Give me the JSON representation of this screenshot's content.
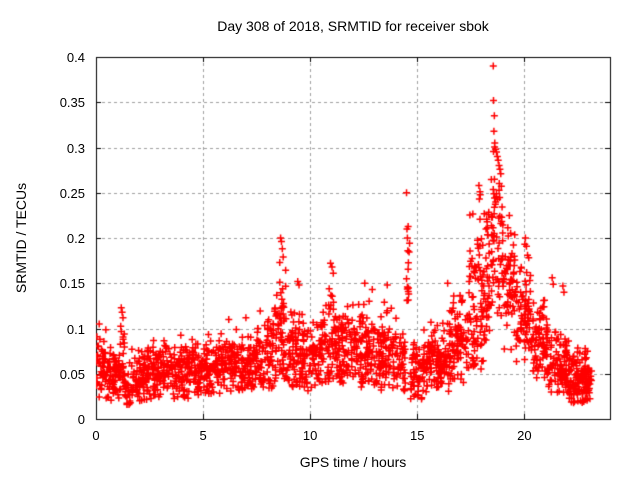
{
  "chart_data": {
    "type": "scatter",
    "title": "Day 308 of 2018, SRMTID for receiver sbok",
    "xlabel": "GPS time / hours",
    "ylabel": "SRMTID / TECUs",
    "xlim": [
      0,
      24
    ],
    "ylim": [
      0,
      0.4
    ],
    "xticks": [
      0,
      5,
      10,
      15,
      20
    ],
    "xtick_labels": [
      "0",
      "5",
      "10",
      "15",
      "20"
    ],
    "yticks": [
      0,
      0.05,
      0.1,
      0.15,
      0.2,
      0.25,
      0.3,
      0.35,
      0.4
    ],
    "ytick_labels": [
      "0",
      "0.05",
      "0.1",
      "0.15",
      "0.2",
      "0.25",
      "0.3",
      "0.35",
      "0.4"
    ],
    "grid": {
      "show": true,
      "style": "dashed",
      "color": "#a0a0a0"
    },
    "legend": "none",
    "marker": {
      "shape": "plus",
      "color": "#ff0000",
      "size": 7,
      "stroke": 1.5
    },
    "series_name": "SRMTID",
    "density_segments": [
      [
        0.0,
        0.6,
        60,
        0.052,
        0.018,
        0.022,
        0.105
      ],
      [
        0.6,
        1.1,
        50,
        0.048,
        0.016,
        0.02,
        0.1
      ],
      [
        1.1,
        1.35,
        25,
        0.068,
        0.028,
        0.025,
        0.125
      ],
      [
        1.35,
        1.65,
        25,
        0.04,
        0.014,
        0.015,
        0.08
      ],
      [
        1.65,
        2.6,
        95,
        0.048,
        0.014,
        0.02,
        0.085
      ],
      [
        2.6,
        3.6,
        100,
        0.052,
        0.015,
        0.024,
        0.092
      ],
      [
        3.6,
        4.2,
        60,
        0.05,
        0.016,
        0.022,
        0.096
      ],
      [
        4.2,
        5.0,
        80,
        0.052,
        0.015,
        0.024,
        0.09
      ],
      [
        5.0,
        5.8,
        80,
        0.055,
        0.016,
        0.027,
        0.1
      ],
      [
        5.8,
        6.5,
        70,
        0.06,
        0.018,
        0.03,
        0.112
      ],
      [
        6.5,
        7.5,
        100,
        0.06,
        0.018,
        0.03,
        0.113
      ],
      [
        7.5,
        8.3,
        80,
        0.068,
        0.022,
        0.034,
        0.135
      ],
      [
        8.3,
        8.9,
        65,
        0.1,
        0.038,
        0.04,
        0.2
      ],
      [
        8.9,
        9.6,
        70,
        0.07,
        0.028,
        0.034,
        0.155
      ],
      [
        9.6,
        10.5,
        90,
        0.065,
        0.02,
        0.03,
        0.125
      ],
      [
        10.5,
        11.3,
        80,
        0.085,
        0.028,
        0.04,
        0.175
      ],
      [
        11.3,
        12.1,
        80,
        0.075,
        0.022,
        0.038,
        0.14
      ],
      [
        12.1,
        13.1,
        100,
        0.075,
        0.024,
        0.035,
        0.152
      ],
      [
        13.1,
        14.1,
        100,
        0.072,
        0.022,
        0.03,
        0.145
      ],
      [
        14.1,
        14.45,
        35,
        0.06,
        0.02,
        0.028,
        0.12
      ],
      [
        14.45,
        14.65,
        12,
        0.17,
        0.035,
        0.13,
        0.252
      ],
      [
        14.65,
        15.6,
        85,
        0.053,
        0.018,
        0.02,
        0.1
      ],
      [
        15.6,
        16.5,
        90,
        0.065,
        0.02,
        0.03,
        0.15
      ],
      [
        16.5,
        17.4,
        95,
        0.082,
        0.026,
        0.04,
        0.162
      ],
      [
        17.4,
        18.1,
        85,
        0.13,
        0.045,
        0.055,
        0.262
      ],
      [
        18.1,
        18.45,
        40,
        0.165,
        0.042,
        0.085,
        0.272
      ],
      [
        18.45,
        18.75,
        38,
        0.215,
        0.045,
        0.1,
        0.302
      ],
      [
        18.75,
        19.05,
        32,
        0.18,
        0.04,
        0.09,
        0.285
      ],
      [
        19.05,
        19.6,
        60,
        0.145,
        0.03,
        0.07,
        0.222
      ],
      [
        19.6,
        20.3,
        70,
        0.12,
        0.03,
        0.06,
        0.202
      ],
      [
        20.3,
        21.1,
        85,
        0.085,
        0.02,
        0.045,
        0.135
      ],
      [
        21.1,
        22.1,
        100,
        0.06,
        0.018,
        0.028,
        0.12
      ],
      [
        22.1,
        22.8,
        95,
        0.045,
        0.013,
        0.018,
        0.085
      ],
      [
        22.8,
        23.15,
        45,
        0.045,
        0.014,
        0.02,
        0.08
      ]
    ],
    "outliers": [
      [
        0.15,
        0.105
      ],
      [
        1.18,
        0.123
      ],
      [
        1.22,
        0.118
      ],
      [
        1.26,
        0.112
      ],
      [
        1.45,
        0.016
      ],
      [
        4.3,
        0.023
      ],
      [
        6.2,
        0.11
      ],
      [
        7.0,
        0.112
      ],
      [
        8.62,
        0.2
      ],
      [
        8.66,
        0.196
      ],
      [
        8.7,
        0.188
      ],
      [
        8.74,
        0.179
      ],
      [
        8.58,
        0.173
      ],
      [
        9.42,
        0.152
      ],
      [
        9.48,
        0.148
      ],
      [
        10.95,
        0.172
      ],
      [
        11.02,
        0.168
      ],
      [
        11.08,
        0.161
      ],
      [
        12.55,
        0.15
      ],
      [
        12.9,
        0.143
      ],
      [
        13.6,
        0.148
      ],
      [
        14.5,
        0.25
      ],
      [
        14.52,
        0.21
      ],
      [
        14.54,
        0.2
      ],
      [
        14.56,
        0.186
      ],
      [
        14.5,
        0.155
      ],
      [
        14.58,
        0.141
      ],
      [
        15.2,
        0.022
      ],
      [
        16.42,
        0.15
      ],
      [
        17.88,
        0.258
      ],
      [
        17.93,
        0.251
      ],
      [
        17.9,
        0.243
      ],
      [
        18.55,
        0.39
      ],
      [
        18.56,
        0.352
      ],
      [
        18.6,
        0.335
      ],
      [
        18.58,
        0.318
      ],
      [
        18.62,
        0.305
      ],
      [
        18.66,
        0.298
      ],
      [
        18.7,
        0.295
      ],
      [
        18.74,
        0.29
      ],
      [
        18.78,
        0.286
      ],
      [
        18.82,
        0.28
      ],
      [
        18.86,
        0.276
      ],
      [
        18.9,
        0.271
      ],
      [
        19.3,
        0.225
      ],
      [
        20.05,
        0.2
      ],
      [
        20.1,
        0.191
      ],
      [
        20.15,
        0.181
      ],
      [
        20.9,
        0.131
      ],
      [
        21.3,
        0.156
      ],
      [
        21.35,
        0.149
      ],
      [
        21.8,
        0.147
      ],
      [
        21.85,
        0.14
      ],
      [
        22.3,
        0.018
      ],
      [
        22.5,
        0.02
      ],
      [
        22.95,
        0.075
      ]
    ]
  }
}
